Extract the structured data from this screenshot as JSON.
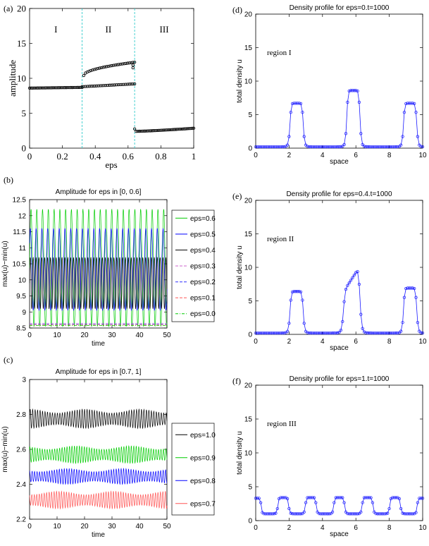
{
  "colors": {
    "axis": "#000000",
    "black": "#000000",
    "green": "#00cc00",
    "blue": "#0000ff",
    "magenta": "#cc66cc",
    "blue_dash": "#3333ff",
    "red": "#ff5555",
    "cyan": "#33cccc",
    "profile": "#1a1aff"
  },
  "chart_data": [
    {
      "panel": "(a)",
      "type": "scatter",
      "title": "",
      "xlabel": "eps",
      "ylabel": "amplitude",
      "xlim": [
        0,
        1
      ],
      "ylim": [
        0,
        20
      ],
      "xticks": [
        "0",
        "0.2",
        "0.4",
        "0.6",
        "0.8",
        "1"
      ],
      "yticks": [
        "0",
        "5",
        "10",
        "15",
        "20"
      ],
      "region_lines": [
        0.32,
        0.64
      ],
      "region_labels": [
        "I",
        "II",
        "III"
      ],
      "series": [
        {
          "name": "region I",
          "x": [
            0,
            0.32
          ],
          "y": [
            8.6,
            8.7
          ]
        },
        {
          "name": "region II lower",
          "x": [
            0.32,
            0.64
          ],
          "y": [
            8.8,
            9.2
          ]
        },
        {
          "name": "region II upper",
          "x": [
            0.33,
            0.64
          ],
          "y": [
            10.4,
            12.3
          ]
        },
        {
          "name": "region II outliers",
          "x": [
            0.63,
            0.63
          ],
          "y": [
            11.5,
            11.9
          ]
        },
        {
          "name": "region III",
          "x": [
            0.64,
            1.0
          ],
          "y": [
            2.4,
            2.85
          ]
        }
      ]
    },
    {
      "panel": "(b)",
      "type": "line",
      "title": "Amplitude for eps in [0, 0.6]",
      "xlabel": "time",
      "ylabel": "max(u)−min(u)",
      "xlim": [
        0,
        50
      ],
      "ylim": [
        8.5,
        12.5
      ],
      "xticks": [
        "0",
        "10",
        "20",
        "30",
        "40",
        "50"
      ],
      "yticks": [
        "8.5",
        "9",
        "9.5",
        "10",
        "10.5",
        "11",
        "11.5",
        "12",
        "12.5"
      ],
      "legend": [
        "eps=0.6",
        "eps=0.5",
        "eps=0.4",
        "eps=0.3",
        "eps=0.2",
        "eps=0.1",
        "eps=0.0"
      ],
      "series": [
        {
          "name": "eps=0.6",
          "min": 8.55,
          "max": 12.2,
          "period": 2.1
        },
        {
          "name": "eps=0.5",
          "min": 9.05,
          "max": 11.6,
          "period": 2.1
        },
        {
          "name": "eps=0.4",
          "min": 9.1,
          "max": 10.7,
          "period": 1.05
        },
        {
          "name": "eps=0.3",
          "value": 8.65
        },
        {
          "name": "eps=0.2",
          "value": 8.62
        },
        {
          "name": "eps=0.1",
          "value": 8.6
        },
        {
          "name": "eps=0.0",
          "value": 8.58
        }
      ]
    },
    {
      "panel": "(c)",
      "type": "line",
      "title": "Amplitude for eps in [0.7, 1]",
      "xlabel": "time",
      "ylabel": "max(u)−min(u)",
      "xlim": [
        0,
        50
      ],
      "ylim": [
        2.2,
        3
      ],
      "xticks": [
        "0",
        "10",
        "20",
        "30",
        "40",
        "50"
      ],
      "yticks": [
        "2.2",
        "2.4",
        "2.6",
        "2.8",
        "3"
      ],
      "legend": [
        "eps=1.0",
        "eps=0.9",
        "eps=0.8",
        "eps=0.7"
      ],
      "series": [
        {
          "name": "eps=1.0",
          "min": 2.72,
          "max": 2.83
        },
        {
          "name": "eps=0.9",
          "min": 2.52,
          "max": 2.62
        },
        {
          "name": "eps=0.8",
          "min": 2.4,
          "max": 2.49
        },
        {
          "name": "eps=0.7",
          "min": 2.26,
          "max": 2.36
        }
      ]
    },
    {
      "panel": "(d)",
      "type": "line",
      "title": "Density profile for eps=0.t=1000",
      "xlabel": "space",
      "ylabel": "total density u",
      "annotation": "region I",
      "xlim": [
        0,
        10
      ],
      "ylim": [
        0,
        20
      ],
      "xticks": [
        "0",
        "2",
        "4",
        "6",
        "8",
        "10"
      ],
      "yticks": [
        "0",
        "5",
        "10",
        "15",
        "20"
      ],
      "peaks": [
        {
          "center": 2.45,
          "height": 6.7,
          "width": 0.8
        },
        {
          "center": 5.85,
          "height": 8.6,
          "width": 0.8
        },
        {
          "center": 9.25,
          "height": 6.7,
          "width": 0.8
        }
      ],
      "baseline": 0.2
    },
    {
      "panel": "(e)",
      "type": "line",
      "title": "Density profile for eps=0.4.t=1000",
      "xlabel": "space",
      "ylabel": "total density u",
      "annotation": "region II",
      "xlim": [
        0,
        10
      ],
      "ylim": [
        0,
        20
      ],
      "xticks": [
        "0",
        "2",
        "4",
        "6",
        "8",
        "10"
      ],
      "yticks": [
        "0",
        "5",
        "10",
        "15",
        "20"
      ],
      "peaks": [
        {
          "center": 2.45,
          "height": 6.4,
          "width": 0.8
        },
        {
          "center": 5.75,
          "height": 10.2,
          "width": 1.0,
          "skew": true
        },
        {
          "center": 9.25,
          "height": 6.9,
          "width": 0.8
        }
      ],
      "baseline": 0.2
    },
    {
      "panel": "(f)",
      "type": "line",
      "title": "Density profile for eps=1.t=1000",
      "xlabel": "space",
      "ylabel": "total density u",
      "annotation": "region III",
      "xlim": [
        0,
        10
      ],
      "ylim": [
        0,
        20
      ],
      "xticks": [
        "0",
        "2",
        "4",
        "6",
        "8",
        "10"
      ],
      "yticks": [
        "0",
        "5",
        "10",
        "15",
        "20"
      ],
      "peaks": [
        {
          "center": 0.05,
          "height": 3.3,
          "width": 0.55
        },
        {
          "center": 1.65,
          "height": 3.4,
          "width": 0.65
        },
        {
          "center": 3.3,
          "height": 3.4,
          "width": 0.65
        },
        {
          "center": 5.0,
          "height": 3.4,
          "width": 0.65
        },
        {
          "center": 6.7,
          "height": 3.4,
          "width": 0.65
        },
        {
          "center": 8.35,
          "height": 3.4,
          "width": 0.65
        },
        {
          "center": 9.95,
          "height": 3.3,
          "width": 0.55
        }
      ],
      "baseline": 1.0
    }
  ]
}
